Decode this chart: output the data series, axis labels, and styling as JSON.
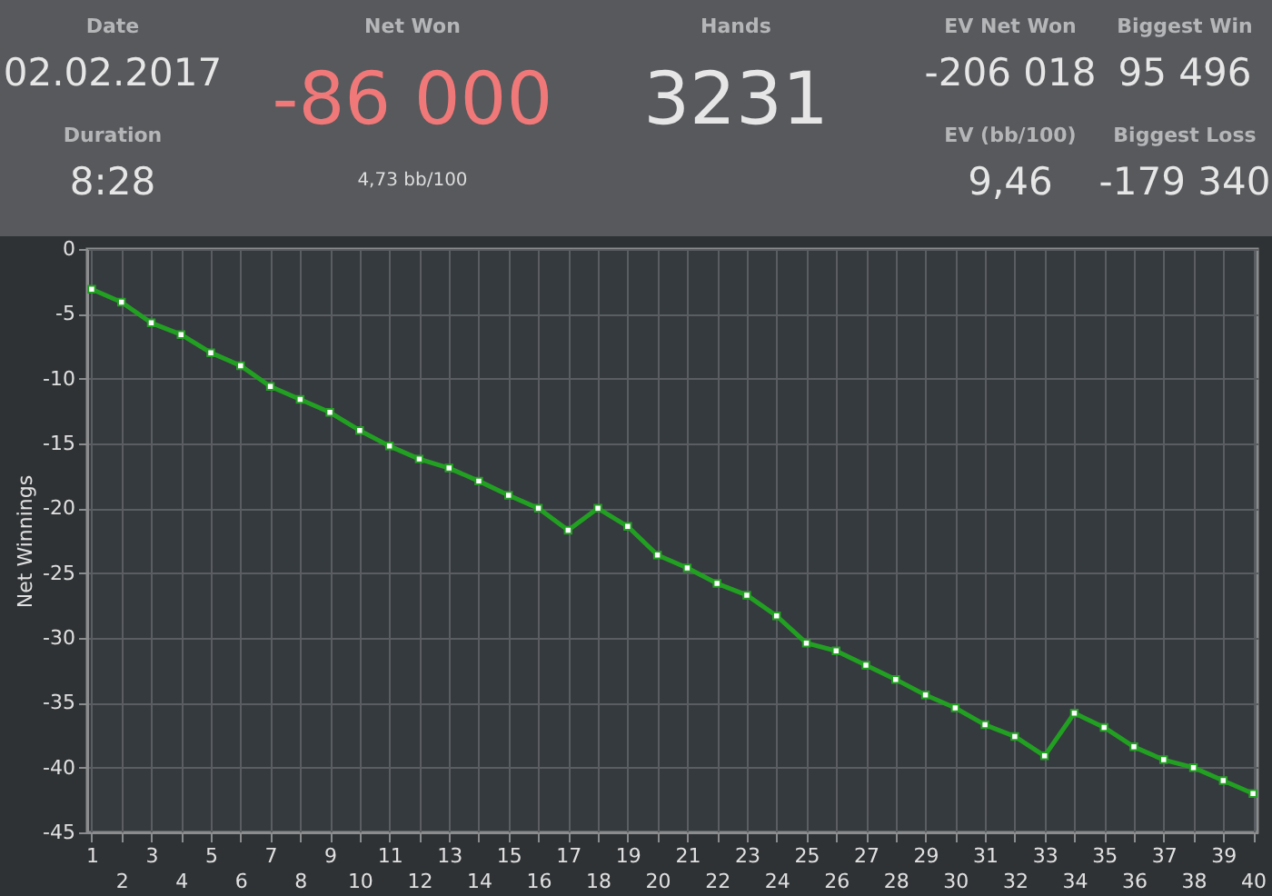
{
  "chart_data": [
    {
      "type": "other",
      "annotations": [
        "Date",
        "02.02.2017",
        "Duration",
        "8:28",
        "Net Won",
        "-86 000",
        "4,73 bb/100",
        "Hands",
        "3231",
        "EV Net Won",
        "-206 018",
        "Biggest Win",
        "95 496",
        "EV (bb/100)",
        "9,46",
        "Biggest Loss",
        "-179 340"
      ]
    },
    {
      "type": "line",
      "ylabel": "Net Winnings",
      "categories": [
        "1",
        "2",
        "3",
        "4",
        "5",
        "6",
        "7",
        "8",
        "9",
        "10",
        "11",
        "12",
        "13",
        "14",
        "15",
        "16",
        "17",
        "18",
        "19",
        "20",
        "21",
        "22",
        "23",
        "24",
        "25",
        "26",
        "27",
        "28",
        "29",
        "30",
        "31",
        "32",
        "33",
        "34",
        "35",
        "36",
        "37",
        "38",
        "39",
        "40"
      ],
      "series": [
        {
          "color": "#22a022",
          "values": [
            -3.1,
            -4.1,
            -5.7,
            -6.6,
            -8.0,
            -9.0,
            -10.6,
            -11.6,
            -12.6,
            -14.0,
            -15.2,
            -16.2,
            -16.9,
            -17.9,
            -19.0,
            -20.0,
            -21.7,
            -20.0,
            -21.4,
            -23.6,
            -24.6,
            -25.8,
            -26.7,
            -28.3,
            -30.4,
            -31.0,
            -32.1,
            -33.2,
            -34.4,
            -35.4,
            -36.7,
            -37.6,
            -39.1,
            -35.8,
            -36.9,
            -38.4,
            -39.4,
            -40.0,
            -41.0,
            -42.0
          ]
        }
      ],
      "ylim": [
        -45,
        0
      ],
      "yticks": [
        -45,
        -40,
        -35,
        -30,
        -25,
        -20,
        -15,
        -10,
        -5,
        0
      ],
      "grid": true,
      "marker": "square",
      "line_style": "solid"
    }
  ]
}
